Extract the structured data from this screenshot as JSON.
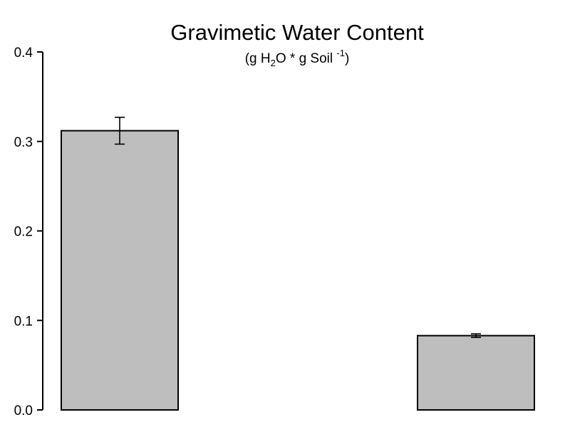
{
  "chart_data": {
    "type": "bar",
    "title": "Gravimetic Water Content",
    "subtitle": {
      "pre": "(g H",
      "sub": "2",
      "mid": "O * g Soil ",
      "sup": "-1",
      "post": ")"
    },
    "xlabel": "",
    "ylabel": "",
    "categories": [
      "",
      ""
    ],
    "values": [
      0.312,
      0.083
    ],
    "errors": [
      0.015,
      0.002
    ],
    "ylim": [
      0,
      0.4
    ],
    "yticks": [
      "0.0",
      "0.1",
      "0.2",
      "0.3",
      "0.4"
    ],
    "grid": false,
    "bar_color": "#bebebe",
    "edge_color": "#000000"
  }
}
